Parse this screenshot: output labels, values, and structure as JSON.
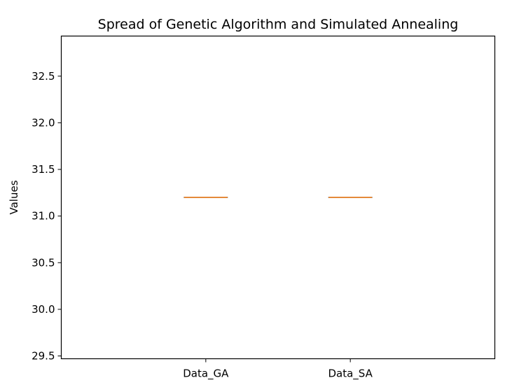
{
  "chart_data": {
    "type": "box",
    "title": "Spread of Genetic Algorithm and Simulated Annealing",
    "xlabel": "",
    "ylabel": "Values",
    "categories": [
      "Data_GA",
      "Data_SA"
    ],
    "series": [
      {
        "values": [
          31.2
        ],
        "min": 31.2,
        "q1": 31.2,
        "median": 31.2,
        "q3": 31.2,
        "max": 31.2
      },
      {
        "values": [
          31.2
        ],
        "min": 31.2,
        "q1": 31.2,
        "median": 31.2,
        "q3": 31.2,
        "max": 31.2
      }
    ],
    "ylim": [
      29.47,
      32.93
    ],
    "yticks": [
      29.5,
      30.0,
      30.5,
      31.0,
      31.5,
      32.0,
      32.5
    ],
    "ytick_labels": [
      "29.5",
      "30.0",
      "30.5",
      "31.0",
      "31.5",
      "32.0",
      "32.5"
    ],
    "grid": false,
    "colors": {
      "median": "#e07a1f",
      "axis": "#000000",
      "background": "#ffffff"
    }
  }
}
